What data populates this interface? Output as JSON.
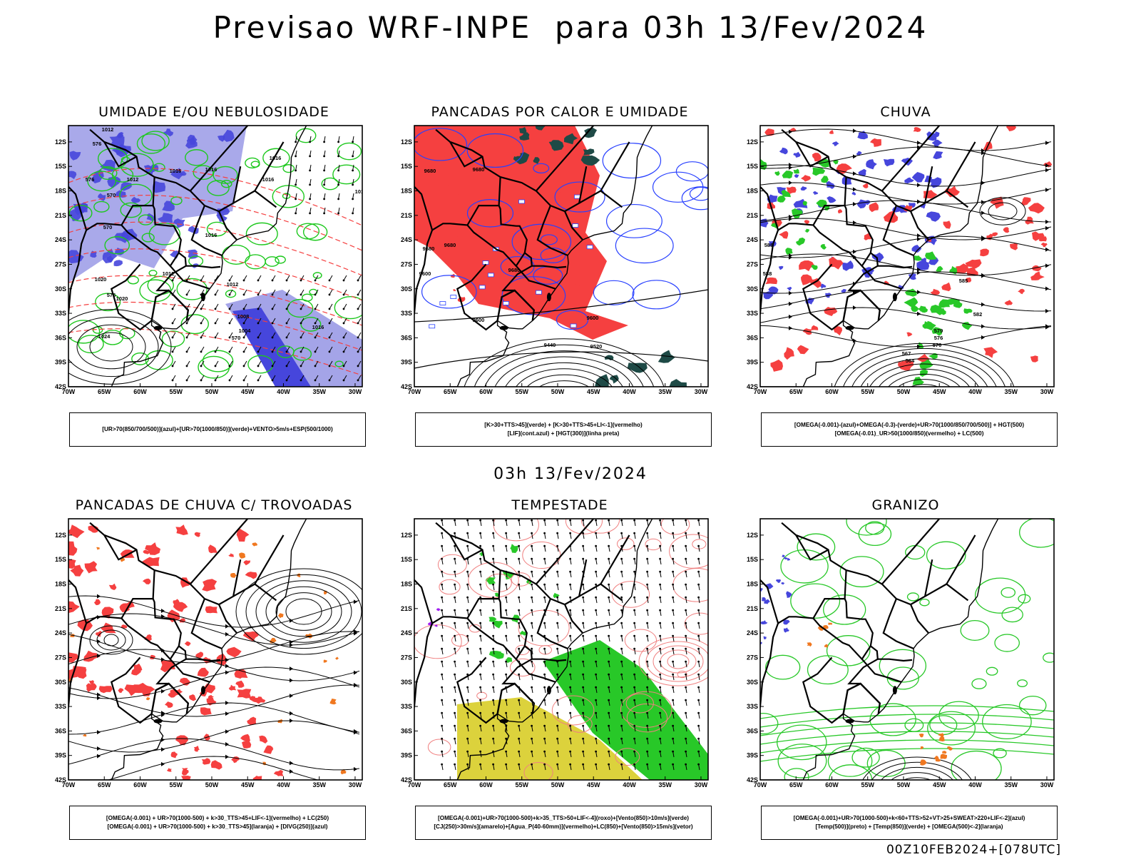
{
  "header": {
    "title": "Previsao WRF-INPE  para 03h 13/Fev/2024",
    "mid_label": "03h 13/Fev/2024",
    "run_label": "00Z10FEB2024+[078UTC]"
  },
  "axes": {
    "lat_ticks": [
      "12S",
      "15S",
      "18S",
      "21S",
      "24S",
      "27S",
      "30S",
      "33S",
      "36S",
      "39S",
      "42S"
    ],
    "lon_ticks": [
      "70W",
      "65W",
      "60W",
      "55W",
      "50W",
      "45W",
      "40W",
      "35W",
      "30W"
    ]
  },
  "colors": {
    "humid_blue": "#9a9ae6",
    "deep_blue": "#4646dc",
    "green": "#1ec81e",
    "bright_green": "#28c828",
    "red": "#f54040",
    "orange": "#f07820",
    "dark_teal": "#1e4a46",
    "yellow": "#dcd23c",
    "line_blue": "#2840ff",
    "purple": "#a020f0",
    "light_red": "#f08080"
  },
  "panels": [
    {
      "id": "umidade",
      "title": "UMIDADE E/OU NEBULOSIDADE",
      "legend": [
        "[UR>70(850/700/500)](azul)+[UR>70(1000/850)](verde)+VENTO>5m/s+ESP(500/1000)"
      ],
      "labels": [
        "1012",
        "1016",
        "1016",
        "1016",
        "1012",
        "1016",
        "1012",
        "1016",
        "1020",
        "1020",
        "1012",
        "1024",
        "1008",
        "1004",
        "1016",
        "1016",
        "576",
        "576",
        "570",
        "570",
        "576",
        "570"
      ]
    },
    {
      "id": "pancadas-calor",
      "title": "PANCADAS POR CALOR E UMIDADE",
      "legend": [
        "[K>30+TTS>45](verde) + [K>30+TTS>45+LI<-1](vermelho)",
        "[LIF](cont.azul) + [HGT(300)](linha preta)"
      ],
      "labels": [
        "9680",
        "9680",
        "9680",
        "9680",
        "9680",
        "9600",
        "9600",
        "9600",
        "9440",
        "9520"
      ]
    },
    {
      "id": "chuva",
      "title": "CHUVA",
      "legend": [
        "[OMEGA(-0.001)-(azul)+OMEGA(-0.3)-(verde)+UR>70(1000/850/700/500)] + HGT(500)",
        "[OMEGA(-0.01)_UR>50(1000/850)(vermelho) + LC(500)"
      ],
      "labels": [
        "588",
        "588",
        "585",
        "582",
        "579",
        "576",
        "570",
        "567",
        "564"
      ]
    },
    {
      "id": "trovoadas",
      "title": "PANCADAS DE CHUVA C/ TROVOADAS",
      "legend": [
        "[OMEGA(-0.001) + UR>70(1000-500) + k>30_TTS>45+LIF<-1](vermelho) + LC(250)",
        "[OMEGA(-0.001) + UR>70(1000-500) + k>30_TTS>45](laranja) + [DIVG(250)](azul)"
      ],
      "labels": []
    },
    {
      "id": "tempestade",
      "title": "TEMPESTADE",
      "legend": [
        "[OMEGA(-0.001)+UR>70(1000-500)+k>35_TTS>50+LIF<-4](roxo)+[Vento(850)>10m/s](verde)",
        "[CJ(250)>30m/s](amarelo)+[Agua_P(40-60mm)](vermelho)+LC(850)+[Vento(850)>15m/s](vetor)"
      ],
      "labels": []
    },
    {
      "id": "granizo",
      "title": "GRANIZO",
      "legend": [
        "[OMEGA(-0.001)+UR>70(1000-500)+k<60+TTS>52+VT>25+SWEAT>220+LIF<-2](azul)",
        "[Temp(500)](preto) + [Temp(850)](verde) + [OMEGA(500)<-2](laranja)"
      ],
      "labels": []
    }
  ]
}
